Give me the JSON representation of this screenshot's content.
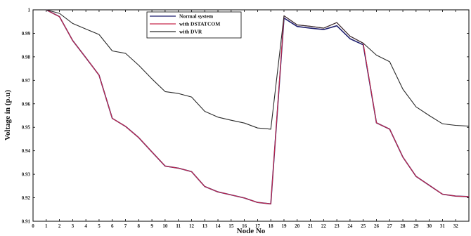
{
  "chart_data": {
    "type": "line",
    "title": "",
    "xlabel": "Node No",
    "ylabel": "Voltage in (p.u)",
    "xlim": [
      0,
      33
    ],
    "ylim": [
      0.91,
      1.0
    ],
    "x_ticks": [
      0,
      1,
      2,
      3,
      4,
      5,
      6,
      7,
      8,
      9,
      10,
      11,
      12,
      13,
      14,
      15,
      16,
      17,
      18,
      19,
      20,
      21,
      22,
      23,
      24,
      25,
      26,
      27,
      28,
      29,
      30,
      31,
      32
    ],
    "y_ticks": [
      0.91,
      0.92,
      0.93,
      0.94,
      0.95,
      0.96,
      0.97,
      0.98,
      0.99,
      1
    ],
    "y_tick_labels": [
      "0.91",
      "0.92",
      "0.93",
      "0.94",
      "0.95",
      "0.96",
      "0.97",
      "0.98",
      "0.99",
      "1"
    ],
    "legend_position": "top-center",
    "grid": false,
    "x": [
      1,
      2,
      3,
      4,
      5,
      6,
      7,
      8,
      9,
      10,
      11,
      12,
      13,
      14,
      15,
      16,
      17,
      18,
      19,
      20,
      21,
      22,
      23,
      24,
      25,
      26,
      27,
      28,
      29,
      30,
      31,
      32,
      33
    ],
    "series": [
      {
        "name": "Normal system",
        "color": "#1f1f6e",
        "values": [
          1.0,
          0.9971,
          0.9869,
          0.9796,
          0.9722,
          0.9538,
          0.9504,
          0.9456,
          0.9395,
          0.9335,
          0.9326,
          0.9311,
          0.9248,
          0.9225,
          0.9212,
          0.9199,
          0.918,
          0.9174,
          0.9965,
          0.9929,
          0.9922,
          0.9916,
          0.9932,
          0.9877,
          0.9851,
          0.9519,
          0.9492,
          0.9373,
          0.9291,
          0.9253,
          0.9215,
          0.9207,
          0.9205
        ]
      },
      {
        "name": "with DSTATCOM",
        "color": "#c8284a",
        "values": [
          1.0,
          0.9971,
          0.9869,
          0.9796,
          0.9722,
          0.9538,
          0.9504,
          0.9456,
          0.9395,
          0.9335,
          0.9326,
          0.9311,
          0.9248,
          0.9225,
          0.9212,
          0.9199,
          0.918,
          0.9174,
          0.9975,
          0.9936,
          0.993,
          0.9922,
          0.9946,
          0.9888,
          0.9858,
          0.9519,
          0.9492,
          0.9373,
          0.9291,
          0.9253,
          0.9215,
          0.9207,
          0.9205
        ]
      },
      {
        "name": "with DVR",
        "color": "#2a2a2a",
        "values": [
          1.0,
          0.9985,
          0.9942,
          0.9918,
          0.9895,
          0.9825,
          0.9815,
          0.9764,
          0.9706,
          0.9652,
          0.9644,
          0.9629,
          0.9568,
          0.9543,
          0.953,
          0.9518,
          0.9497,
          0.9492,
          0.9975,
          0.9936,
          0.993,
          0.9922,
          0.9946,
          0.9888,
          0.9858,
          0.9807,
          0.9779,
          0.9662,
          0.9587,
          0.955,
          0.9515,
          0.9508,
          0.9505
        ]
      }
    ]
  }
}
